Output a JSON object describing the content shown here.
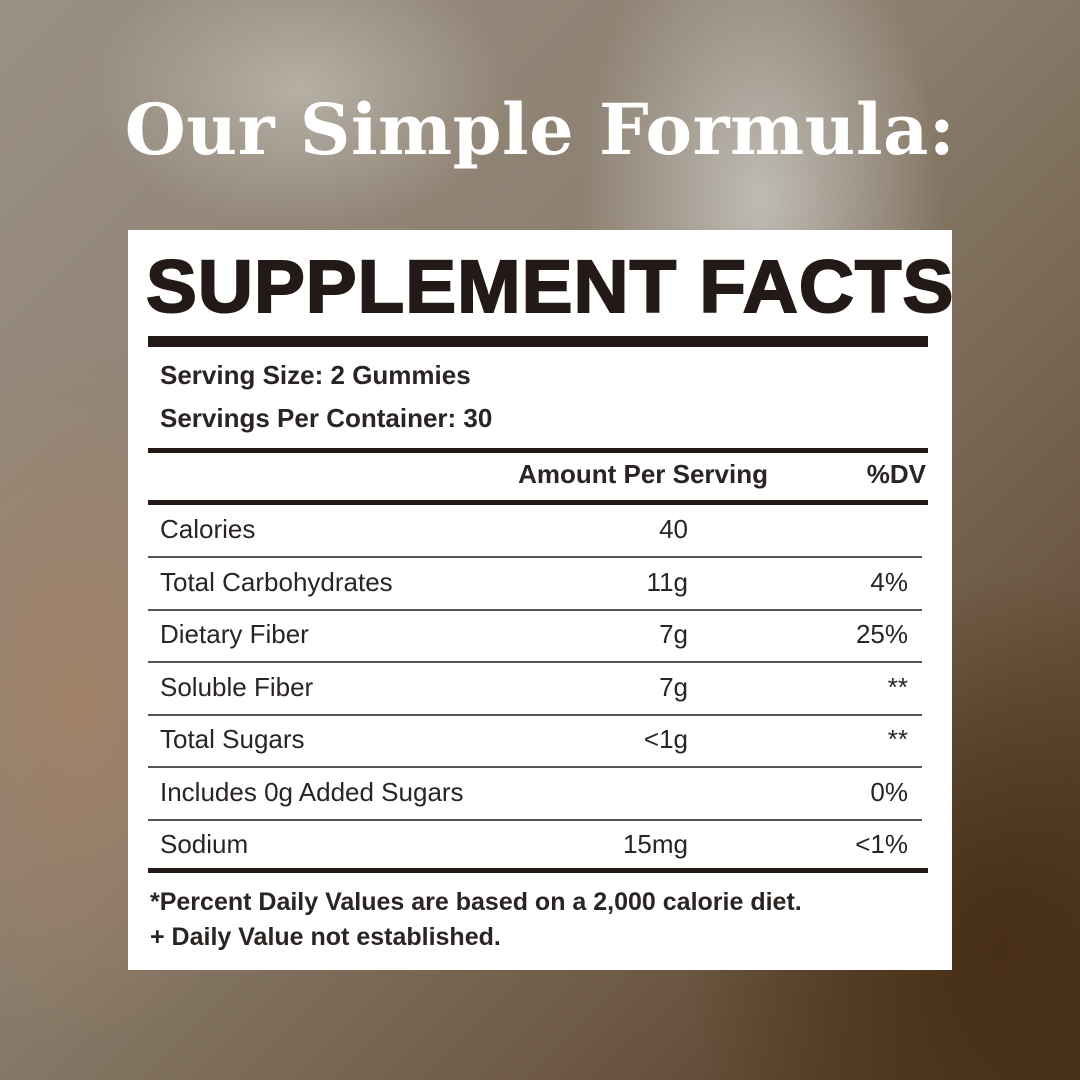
{
  "headline": "Our Simple Formula:",
  "facts": {
    "title": "SUPPLEMENT FACTS",
    "serving_size_label": "Serving Size:",
    "serving_size_value": "2 Gummies",
    "servings_per_container": "Servings Per Container: 30",
    "col_amount": "Amount Per Serving",
    "col_dv": "%DV",
    "rows": [
      {
        "name": "Calories",
        "amount": "40",
        "dv": ""
      },
      {
        "name": "Total Carbohydrates",
        "amount": "11g",
        "dv": "4%"
      },
      {
        "name": "Dietary Fiber",
        "amount": "7g",
        "dv": "25%"
      },
      {
        "name": "Soluble Fiber",
        "amount": "7g",
        "dv": "**"
      },
      {
        "name": "Total Sugars",
        "amount": "<1g",
        "dv": "**"
      },
      {
        "name": "Includes 0g Added Sugars",
        "amount": "",
        "dv": "0%"
      },
      {
        "name": "Sodium",
        "amount": "15mg",
        "dv": "<1%"
      }
    ],
    "footnote_1": "*Percent Daily Values are based on a 2,000 calorie diet.",
    "footnote_2": "+ Daily Value not established."
  }
}
